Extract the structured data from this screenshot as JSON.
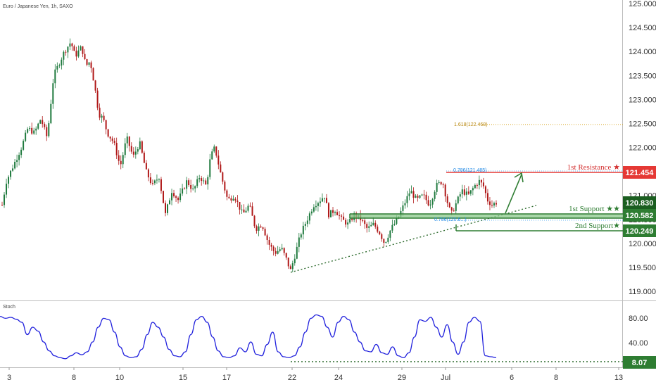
{
  "header": {
    "title": "Euro / Japanese Yen, 1h, SAXO"
  },
  "colors": {
    "up": "#1f7a3e",
    "down": "#b01818",
    "resistance": "#e53935",
    "support": "#2e7d32",
    "stoch": "#2222dd",
    "fib": "#d4a017"
  },
  "chart_data": [
    {
      "type": "candlestick",
      "title": "Euro / Japanese Yen, 1h, SAXO",
      "ylim": [
        118.85,
        125.05
      ],
      "yticks": [
        125.0,
        124.5,
        124.0,
        123.5,
        123.0,
        122.5,
        122.0,
        121.5,
        121.0,
        120.5,
        120.0,
        119.5,
        119.0
      ],
      "yticklabels": [
        "125.000",
        "124.500",
        "124.000",
        "123.500",
        "123.000",
        "122.500",
        "122.000",
        "121.500",
        "121.000",
        "120.500",
        "120.000",
        "119.500",
        "119.000"
      ],
      "x_labels": [
        "3",
        "8",
        "10",
        "15",
        "17",
        "22",
        "24",
        "29",
        "Jul",
        "6",
        "8",
        "13"
      ],
      "price_path": [
        [
          0,
          120.8
        ],
        [
          2,
          121.3
        ],
        [
          6,
          121.7
        ],
        [
          9,
          122.0
        ],
        [
          12,
          122.4
        ],
        [
          15,
          122.3
        ],
        [
          18,
          122.6
        ],
        [
          21,
          122.2
        ],
        [
          24,
          123.5
        ],
        [
          26,
          123.7
        ],
        [
          29,
          124.0
        ],
        [
          32,
          124.2
        ],
        [
          34,
          123.9
        ],
        [
          37,
          124.1
        ],
        [
          39,
          123.7
        ],
        [
          41,
          123.8
        ],
        [
          43,
          123.3
        ],
        [
          45,
          122.7
        ],
        [
          47,
          122.6
        ],
        [
          49,
          122.3
        ],
        [
          52,
          122.1
        ],
        [
          55,
          121.6
        ],
        [
          58,
          122.2
        ],
        [
          61,
          121.8
        ],
        [
          64,
          122.1
        ],
        [
          67,
          121.5
        ],
        [
          70,
          121.2
        ],
        [
          73,
          121.4
        ],
        [
          76,
          120.6
        ],
        [
          79,
          121.1
        ],
        [
          82,
          120.9
        ],
        [
          86,
          121.3
        ],
        [
          89,
          121.1
        ],
        [
          92,
          121.4
        ],
        [
          95,
          121.2
        ],
        [
          97,
          121.8
        ],
        [
          99,
          122.0
        ],
        [
          102,
          121.4
        ],
        [
          105,
          120.9
        ],
        [
          108,
          121.0
        ],
        [
          112,
          120.6
        ],
        [
          115,
          120.8
        ],
        [
          118,
          120.3
        ],
        [
          121,
          120.4
        ],
        [
          124,
          120.0
        ],
        [
          127,
          119.8
        ],
        [
          130,
          119.9
        ],
        [
          133,
          119.6
        ],
        [
          134,
          119.4
        ],
        [
          136,
          119.7
        ],
        [
          139,
          120.2
        ],
        [
          142,
          120.5
        ],
        [
          145,
          120.8
        ],
        [
          148,
          120.9
        ],
        [
          150,
          121.0
        ],
        [
          152,
          120.6
        ],
        [
          155,
          120.7
        ],
        [
          158,
          120.5
        ],
        [
          161,
          120.4
        ],
        [
          164,
          120.6
        ],
        [
          167,
          120.5
        ],
        [
          170,
          120.3
        ],
        [
          173,
          120.4
        ],
        [
          176,
          120.2
        ],
        [
          178,
          120.0
        ],
        [
          181,
          120.3
        ],
        [
          184,
          120.5
        ],
        [
          187,
          120.8
        ],
        [
          190,
          121.1
        ],
        [
          193,
          120.9
        ],
        [
          196,
          121.0
        ],
        [
          199,
          120.8
        ],
        [
          202,
          121.2
        ],
        [
          205,
          121.3
        ],
        [
          207,
          120.9
        ],
        [
          209,
          120.6
        ],
        [
          211,
          120.8
        ],
        [
          214,
          121.1
        ],
        [
          217,
          121.0
        ],
        [
          220,
          121.2
        ],
        [
          222,
          121.3
        ],
        [
          224,
          121.2
        ],
        [
          226,
          120.9
        ],
        [
          228,
          120.8
        ],
        [
          230,
          120.85
        ]
      ],
      "sma_pct": [
        0.9,
        0.4,
        0.2,
        0.6,
        0.9,
        0.7,
        0.3,
        0.1,
        0.05,
        0.4,
        0.8,
        0.9,
        0.5,
        0.15,
        0.05,
        0.3,
        0.75,
        0.9,
        0.6,
        0.2,
        0.1,
        0.4,
        0.85,
        0.95,
        0.7,
        0.3,
        0.1,
        0.2,
        0.5,
        0.9,
        0.85,
        0.4,
        0.1,
        0.08,
        0.3,
        0.8,
        0.9,
        0.6,
        0.2,
        0.05,
        0.1
      ]
    },
    {
      "type": "line",
      "title": "Stoch",
      "ylim": [
        0,
        100
      ],
      "yticks": [
        80,
        40
      ],
      "yticklabels": [
        "80.00",
        "40.00"
      ],
      "current_value_label": "8.07",
      "values": [
        92,
        88,
        90,
        86,
        80,
        55,
        70,
        62,
        40,
        22,
        12,
        8,
        6,
        12,
        18,
        14,
        20,
        40,
        70,
        88,
        85,
        60,
        30,
        12,
        8,
        10,
        25,
        55,
        80,
        70,
        50,
        25,
        12,
        10,
        20,
        55,
        85,
        92,
        80,
        50,
        22,
        10,
        8,
        12,
        28,
        20,
        40,
        15,
        12,
        35,
        60,
        20,
        10,
        8,
        12,
        30,
        60,
        88,
        95,
        92,
        70,
        50,
        80,
        92,
        85,
        60,
        40,
        22,
        20,
        35,
        18,
        15,
        30,
        12,
        8,
        18,
        50,
        85,
        82,
        90,
        70,
        50,
        75,
        40,
        15,
        40,
        80,
        90,
        82,
        12,
        10,
        8.07
      ]
    }
  ],
  "annotations": {
    "resistance": {
      "label": "1st Resistance ★",
      "value": 121.454,
      "value_label": "121.454"
    },
    "support1": {
      "label": "1st Support ★★",
      "value": 120.582,
      "value_label": "120.582"
    },
    "support2": {
      "label": "2nd Support★",
      "value": 120.249,
      "value_label": "120.249"
    },
    "current_price": {
      "value": 120.83,
      "value_label": "120.830"
    },
    "fib_ext": {
      "label": "1.618(122.468)",
      "value": 122.468
    },
    "fib_res": {
      "label": "0.786(121.485)"
    },
    "fib_sup": {
      "label": "0.786(120.6...)"
    }
  }
}
